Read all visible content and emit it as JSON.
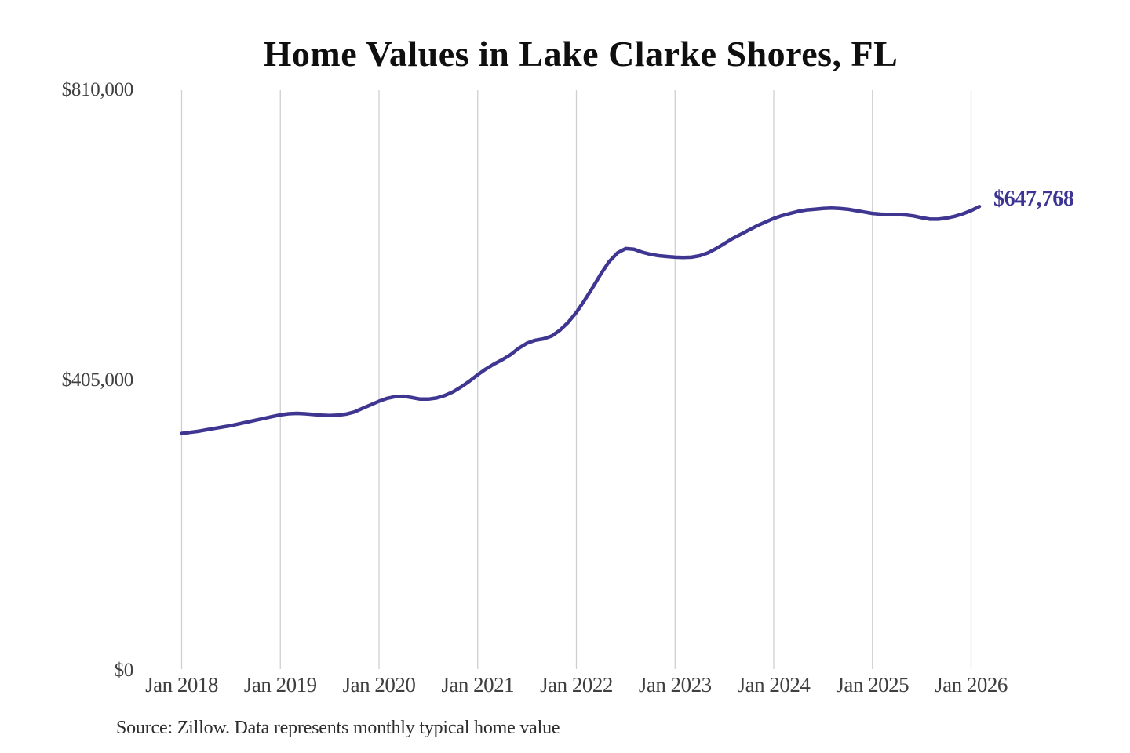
{
  "title": "Home Values in Lake Clarke Shores, FL",
  "end_label": "$647,768",
  "source_note": "Source: Zillow. Data represents monthly typical home value",
  "colors": {
    "line": "#3e3691",
    "end_label": "#3b3492",
    "grid": "#cfcfcf",
    "tick_text": "#3f3f3f",
    "title_text": "#0f0f0f",
    "source_text": "#2e2e2e",
    "background": "#ffffff"
  },
  "chart_data": {
    "type": "line",
    "title": "Home Values in Lake Clarke Shores, FL",
    "xlabel": "",
    "ylabel": "",
    "ylim": [
      0,
      810000
    ],
    "grid": "vertical-only",
    "legend": "none",
    "x_tick_labels": [
      "Jan 2018",
      "Jan 2019",
      "Jan 2020",
      "Jan 2021",
      "Jan 2022",
      "Jan 2023",
      "Jan 2024",
      "Jan 2025",
      "Jan 2026"
    ],
    "y_ticks": [
      {
        "value": 0,
        "label": "$0"
      },
      {
        "value": 405000,
        "label": "$405,000"
      },
      {
        "value": 810000,
        "label": "$810,000"
      }
    ],
    "series": [
      {
        "name": "Monthly typical home value",
        "x_start": "Jan 2018",
        "x_end": "Feb 2026",
        "x_interval": "month",
        "values": [
          331000,
          332500,
          334000,
          336000,
          338000,
          340000,
          342000,
          344500,
          347000,
          349500,
          352000,
          354500,
          357000,
          358500,
          359000,
          358500,
          357500,
          356500,
          356000,
          356500,
          358000,
          361000,
          366000,
          371000,
          376000,
          380000,
          382500,
          383000,
          381000,
          379000,
          379000,
          380500,
          384000,
          389000,
          396000,
          404000,
          413000,
          421000,
          428000,
          434000,
          441000,
          450000,
          457000,
          461000,
          463000,
          467000,
          475000,
          486000,
          500000,
          517000,
          535000,
          554000,
          571000,
          583000,
          589000,
          588000,
          584000,
          581000,
          579000,
          578000,
          577000,
          576500,
          577000,
          579000,
          583000,
          589000,
          596000,
          603000,
          609000,
          615000,
          621000,
          626000,
          631000,
          635000,
          638000,
          641000,
          643000,
          644000,
          645000,
          645500,
          645000,
          644000,
          642000,
          640000,
          638000,
          637000,
          636500,
          636500,
          636000,
          634500,
          632000,
          630000,
          630000,
          631500,
          634000,
          637500,
          642000,
          647768
        ]
      }
    ],
    "final_value": 647768,
    "final_value_label": "$647,768"
  }
}
